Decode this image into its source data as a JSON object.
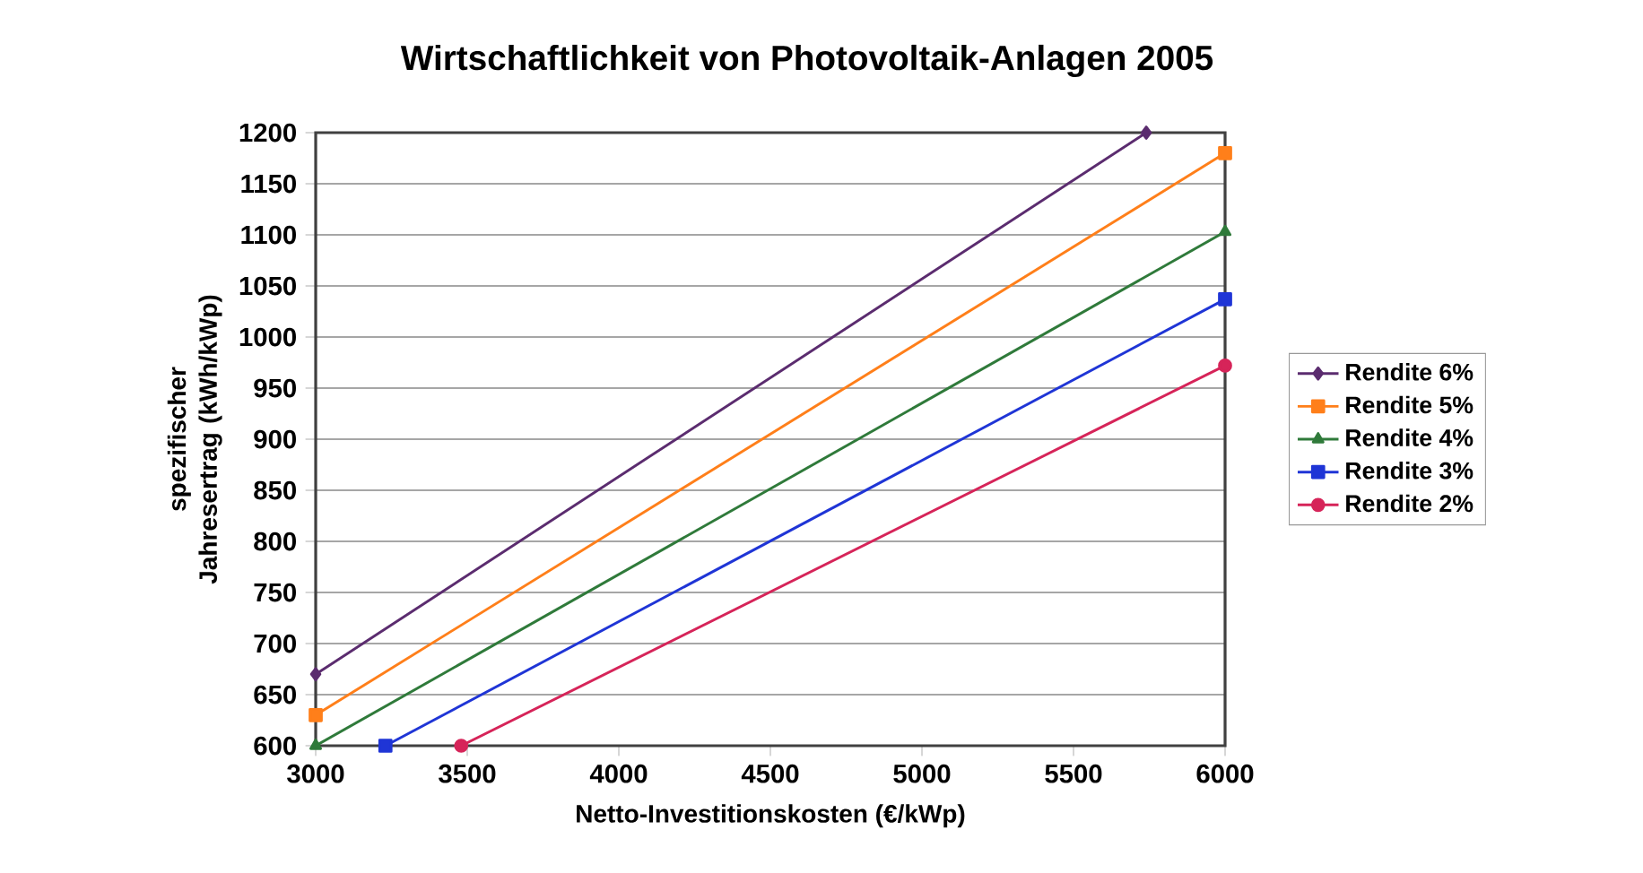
{
  "chart_data": {
    "type": "line",
    "title": "Wirtschaftlichkeit von Photovoltaik-Anlagen 2005",
    "xlabel": "Netto-Investitionskosten (€/kWp)",
    "ylabel": "spezifischer Jahresertrag (kWh/kWp)",
    "xlim": [
      3000,
      6000
    ],
    "xticks": [
      3000,
      3500,
      4000,
      4500,
      5000,
      5500,
      6000
    ],
    "ylim": [
      600,
      1200
    ],
    "yticks": [
      600,
      650,
      700,
      750,
      800,
      850,
      900,
      950,
      1000,
      1050,
      1100,
      1150,
      1200
    ],
    "grid": "y",
    "legend": "right",
    "line_style": "solid",
    "series": [
      {
        "name": "Rendite 6%",
        "color": "#5b2c6f",
        "marker": "diamond",
        "x": [
          3000,
          5740
        ],
        "values": [
          670,
          1200
        ]
      },
      {
        "name": "Rendite 5%",
        "color": "#ff7f1a",
        "marker": "square",
        "x": [
          3000,
          6000
        ],
        "values": [
          630,
          1180
        ]
      },
      {
        "name": "Rendite 4%",
        "color": "#2f7a3a",
        "marker": "triangle",
        "x": [
          3000,
          6000
        ],
        "values": [
          600,
          1103
        ]
      },
      {
        "name": "Rendite 3%",
        "color": "#1f35d6",
        "marker": "square",
        "x": [
          3230,
          6000
        ],
        "values": [
          600,
          1037
        ]
      },
      {
        "name": "Rendite 2%",
        "color": "#d62459",
        "marker": "circle",
        "x": [
          3480,
          6000
        ],
        "values": [
          600,
          972
        ]
      }
    ]
  }
}
